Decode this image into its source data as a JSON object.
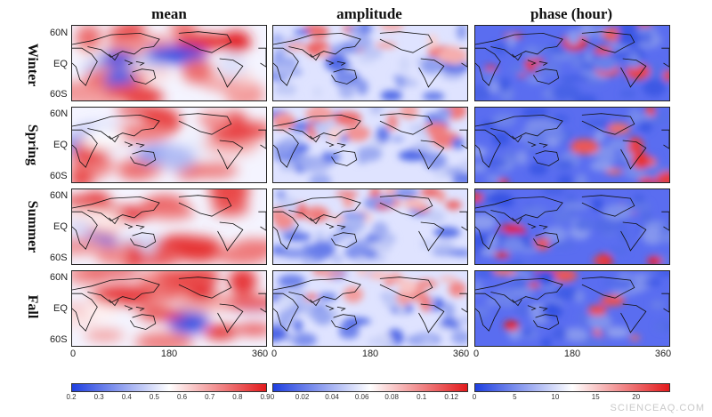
{
  "columns": [
    {
      "title": "mean"
    },
    {
      "title": "amplitude"
    },
    {
      "title": "phase (hour)"
    }
  ],
  "rows": [
    {
      "label": "Winter"
    },
    {
      "label": "Spring"
    },
    {
      "label": "Summer"
    },
    {
      "label": "Fall"
    }
  ],
  "lat_labels": [
    "60N",
    "EQ",
    "60S"
  ],
  "lon_labels": [
    "0",
    "180",
    "360"
  ],
  "colorbars": [
    {
      "ticks": [
        "0.2",
        "0.3",
        "0.4",
        "0.5",
        "0.6",
        "0.7",
        "0.8",
        "0.9"
      ]
    },
    {
      "ticks": [
        "0",
        "0.02",
        "0.04",
        "0.06",
        "0.08",
        "0.1",
        "0.12"
      ]
    },
    {
      "ticks": [
        "0",
        "5",
        "10",
        "15",
        "20"
      ]
    }
  ],
  "colors": {
    "low": "#1f3fe0",
    "mid": "#ffffff",
    "high": "#e31a1c"
  },
  "watermark": "SCIENCEAQ.COM"
}
